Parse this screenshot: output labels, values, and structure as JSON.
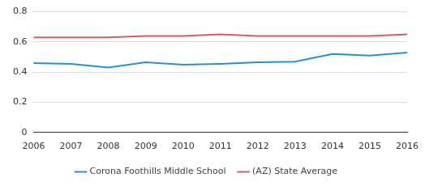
{
  "chart_data": {
    "type": "line",
    "categories": [
      "2006",
      "2007",
      "2008",
      "2009",
      "2010",
      "2011",
      "2012",
      "2013",
      "2014",
      "2015",
      "2016"
    ],
    "series": [
      {
        "name": "Corona Foothills Middle School",
        "color": "#2a8fd0",
        "values": [
          0.46,
          0.455,
          0.43,
          0.465,
          0.45,
          0.455,
          0.465,
          0.47,
          0.52,
          0.51,
          0.53
        ]
      },
      {
        "name": "(AZ) State Average",
        "color": "#d06262",
        "values": [
          0.63,
          0.63,
          0.63,
          0.64,
          0.64,
          0.65,
          0.64,
          0.64,
          0.64,
          0.64,
          0.65
        ]
      }
    ],
    "ylim": [
      0,
      0.8
    ],
    "yticks": [
      0,
      0.2,
      0.4,
      0.6,
      0.8
    ],
    "grid": true,
    "legend": "bottom"
  }
}
